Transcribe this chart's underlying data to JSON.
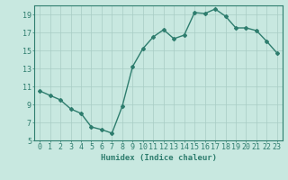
{
  "x": [
    0,
    1,
    2,
    3,
    4,
    5,
    6,
    7,
    8,
    9,
    10,
    11,
    12,
    13,
    14,
    15,
    16,
    17,
    18,
    19,
    20,
    21,
    22,
    23
  ],
  "y": [
    10.5,
    10.0,
    9.5,
    8.5,
    8.0,
    6.5,
    6.2,
    5.8,
    8.8,
    13.2,
    15.2,
    16.5,
    17.3,
    16.3,
    16.7,
    19.2,
    19.1,
    19.6,
    18.8,
    17.5,
    17.5,
    17.2,
    16.0,
    14.7
  ],
  "line_color": "#2E7D6E",
  "marker": "D",
  "marker_size": 2.0,
  "bg_color": "#C8E8E0",
  "grid_color": "#A8CCC4",
  "xlabel": "Humidex (Indice chaleur)",
  "ylim": [
    5,
    20
  ],
  "xlim": [
    -0.5,
    23.5
  ],
  "yticks": [
    5,
    7,
    9,
    11,
    13,
    15,
    17,
    19
  ],
  "xticks": [
    0,
    1,
    2,
    3,
    4,
    5,
    6,
    7,
    8,
    9,
    10,
    11,
    12,
    13,
    14,
    15,
    16,
    17,
    18,
    19,
    20,
    21,
    22,
    23
  ],
  "xlabel_fontsize": 6.5,
  "tick_fontsize": 6.0,
  "line_width": 1.0
}
